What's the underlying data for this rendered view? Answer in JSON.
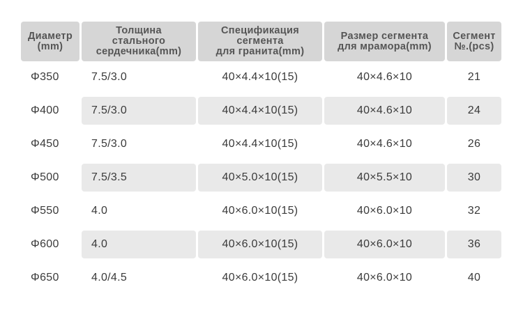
{
  "headers": [
    "Диаметр\n(mm)",
    "Толщина\nстального\nсердечника(mm)",
    "Спецификация\nсегмента\nдля гранита(mm)",
    "Размер сегмента\nдля мрамора(mm)",
    "Сегмент\n№.(pcs)"
  ],
  "rows": [
    {
      "diameter": "Φ350",
      "steel_core": "7.5/3.0",
      "granite_segment": "40×4.4×10(15)",
      "marble_segment": "40×4.6×10",
      "segment_count": "21"
    },
    {
      "diameter": "Φ400",
      "steel_core": "7.5/3.0",
      "granite_segment": "40×4.4×10(15)",
      "marble_segment": "40×4.6×10",
      "segment_count": "24"
    },
    {
      "diameter": "Φ450",
      "steel_core": "7.5/3.0",
      "granite_segment": "40×4.4×10(15)",
      "marble_segment": "40×4.6×10",
      "segment_count": "26"
    },
    {
      "diameter": "Φ500",
      "steel_core": "7.5/3.5",
      "granite_segment": "40×5.0×10(15)",
      "marble_segment": "40×5.5×10",
      "segment_count": "30"
    },
    {
      "diameter": "Φ550",
      "steel_core": "4.0",
      "granite_segment": "40×6.0×10(15)",
      "marble_segment": "40×6.0×10",
      "segment_count": "32"
    },
    {
      "diameter": "Φ600",
      "steel_core": "4.0",
      "granite_segment": "40×6.0×10(15)",
      "marble_segment": "40×6.0×10",
      "segment_count": "36"
    },
    {
      "diameter": "Φ650",
      "steel_core": "4.0/4.5",
      "granite_segment": "40×6.0×10(15)",
      "marble_segment": "40×6.0×10",
      "segment_count": "40"
    }
  ],
  "colors": {
    "header_bg": "#d6d6d6",
    "stripe_bg": "#e9e9e9",
    "text": "#3a3a3a"
  }
}
